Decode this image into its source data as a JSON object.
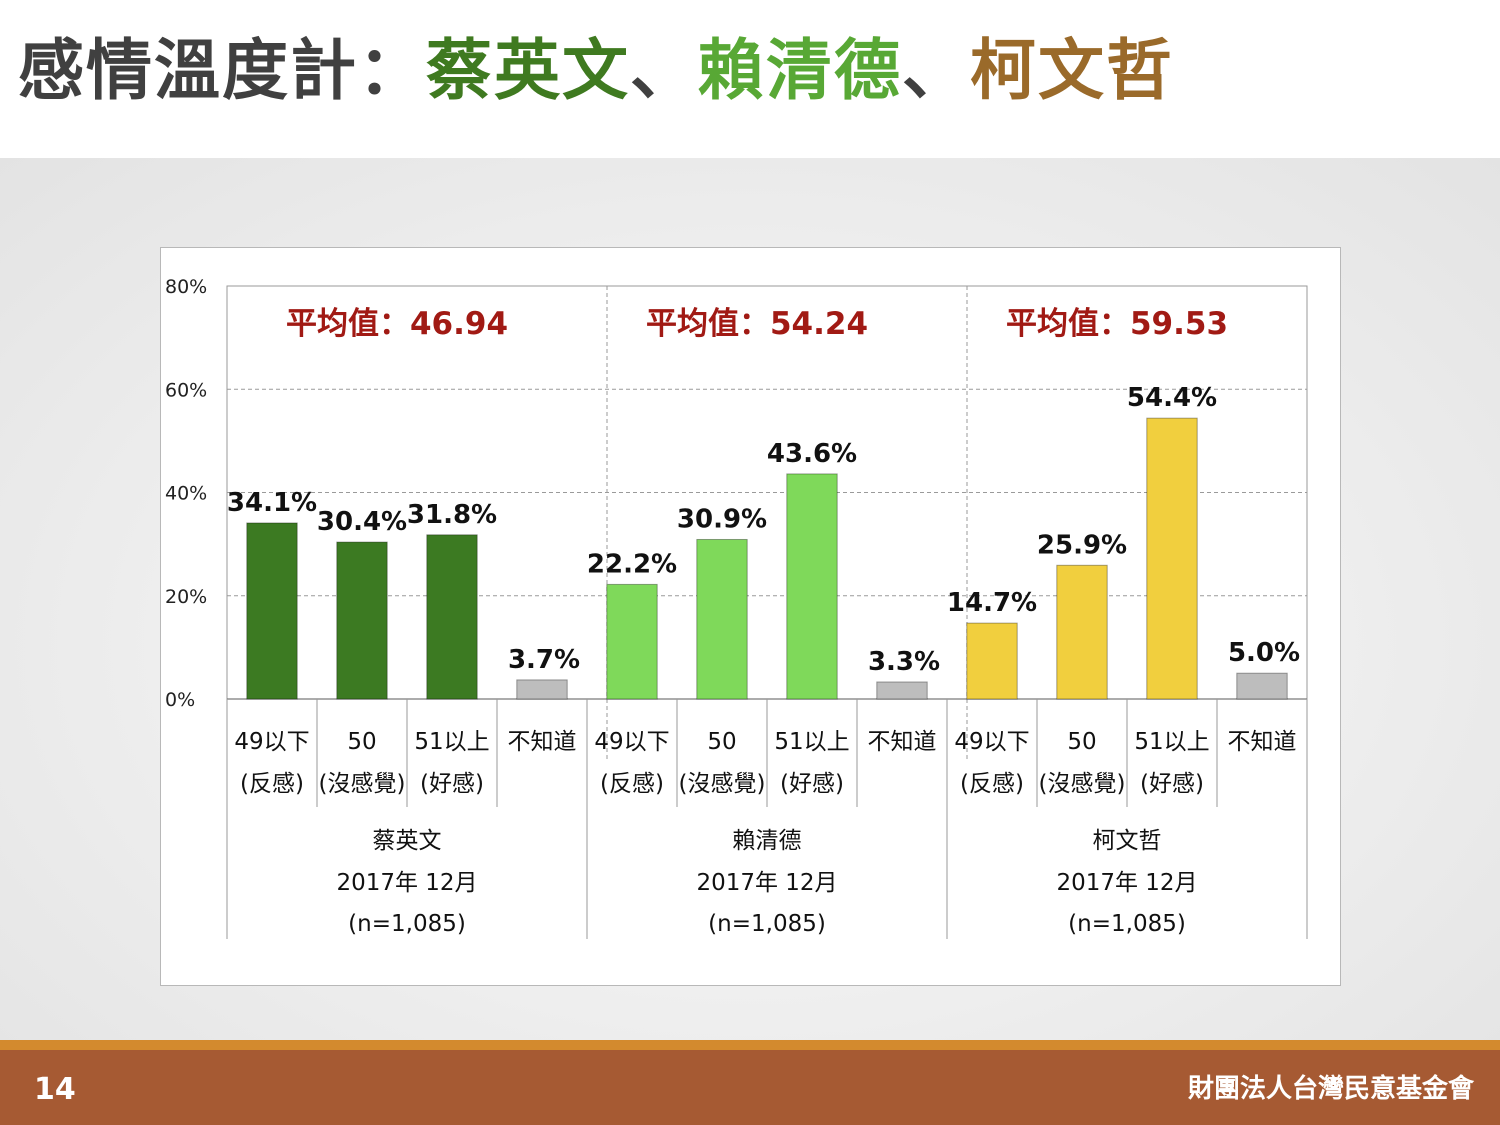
{
  "title": {
    "prefix": "感情溫度計：",
    "name1": "蔡英文",
    "sep1": "、",
    "name2": "賴清德",
    "sep2": "、",
    "name3": "柯文哲"
  },
  "colors": {
    "title_prefix": "#404040",
    "title_name1": "#3f7a20",
    "title_name2": "#58a835",
    "title_name3": "#9a6a2a",
    "average_text": "#a11a14"
  },
  "footer": {
    "page_number": "14",
    "organization": "財團法人台灣民意基金會"
  },
  "chart_data": {
    "type": "bar",
    "ylim": [
      0,
      80
    ],
    "yticks": [
      "0%",
      "20%",
      "40%",
      "60%",
      "80%"
    ],
    "grid": true,
    "category_labels": [
      [
        "49以下",
        "(反感)"
      ],
      [
        "50",
        "(沒感覺)"
      ],
      [
        "51以上",
        "(好感)"
      ],
      [
        "不知道",
        ""
      ]
    ],
    "groups": [
      {
        "name": "蔡英文",
        "date": "2017年 12月",
        "sample": "(n=1,085)",
        "average_label": "平均值：46.94",
        "bar_color": "#3c7a22",
        "values": [
          34.1,
          30.4,
          31.8,
          3.7
        ],
        "value_labels": [
          "34.1%",
          "30.4%",
          "31.8%",
          "3.7%"
        ]
      },
      {
        "name": "賴清德",
        "date": "2017年 12月",
        "sample": "(n=1,085)",
        "average_label": "平均值：54.24",
        "bar_color": "#7fd95a",
        "values": [
          22.2,
          30.9,
          43.6,
          3.3
        ],
        "value_labels": [
          "22.2%",
          "30.9%",
          "43.6%",
          "3.3%"
        ]
      },
      {
        "name": "柯文哲",
        "date": "2017年 12月",
        "sample": "(n=1,085)",
        "average_label": "平均值：59.53",
        "bar_color": "#f1cf3e",
        "values": [
          14.7,
          25.9,
          54.4,
          5.0
        ],
        "value_labels": [
          "14.7%",
          "25.9%",
          "54.4%",
          "5.0%"
        ]
      }
    ],
    "unknown_bar_color": "#bdbdbd"
  }
}
